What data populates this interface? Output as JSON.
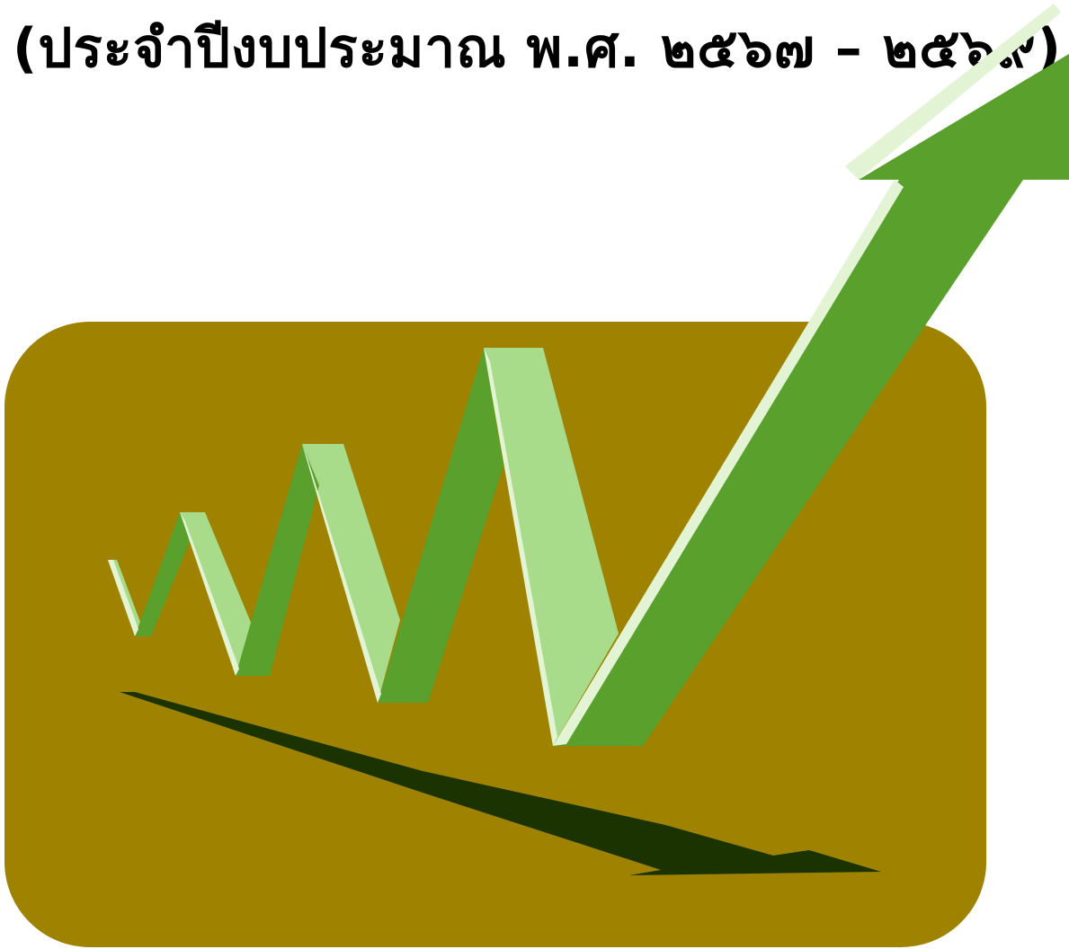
{
  "heading": {
    "text": "(ประจำปีงบประมาณ พ.ศ. ๒๕๖๗ – ๒๕๖๙)"
  },
  "graphic": {
    "name": "growth-arrow-illustration",
    "colors": {
      "panel": "#9e8200",
      "arrow_dark": "#5aa02d",
      "arrow_light": "#a8dc8a",
      "arrow_highlight": "#e2f4d4",
      "shadow": "#1a3300"
    }
  }
}
